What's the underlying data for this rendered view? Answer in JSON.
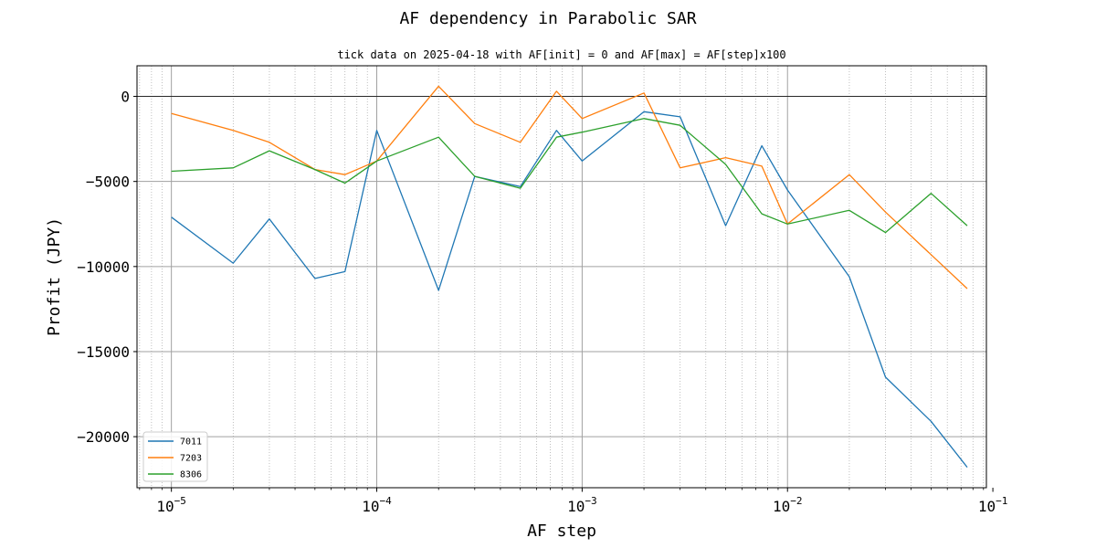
{
  "chart_data": {
    "type": "line",
    "suptitle": "AF dependency in Parabolic SAR",
    "title": "tick data on 2025-04-18 with AF[init] = 0 and AF[max] = AF[step]x100",
    "xlabel": "AF step",
    "ylabel": "Profit (JPY)",
    "xscale": "log",
    "xlim": [
      6.8e-06,
      0.093
    ],
    "ylim": [
      -23000,
      1800
    ],
    "yticks": [
      0,
      -5000,
      -10000,
      -15000,
      -20000
    ],
    "ytick_labels": [
      "0",
      "−5000",
      "−10000",
      "−15000",
      "−20000"
    ],
    "xtick_labels": [
      {
        "base": "10",
        "exp": "−5",
        "value": 1e-05
      },
      {
        "base": "10",
        "exp": "−4",
        "value": 0.0001
      },
      {
        "base": "10",
        "exp": "−3",
        "value": 0.001
      },
      {
        "base": "10",
        "exp": "−2",
        "value": 0.01
      },
      {
        "base": "10",
        "exp": "−1",
        "value": 0.1
      }
    ],
    "grid": true,
    "hline": 0,
    "legend_position": "lower-left",
    "x": [
      1e-05,
      2e-05,
      3e-05,
      5e-05,
      7e-05,
      0.0001,
      0.0002,
      0.0003,
      0.0005,
      0.00075,
      0.001,
      0.002,
      0.003,
      0.005,
      0.0075,
      0.01,
      0.02,
      0.03,
      0.05,
      0.075
    ],
    "series": [
      {
        "name": "7011",
        "color": "#1f77b4",
        "values": [
          -7100,
          -9800,
          -7200,
          -10700,
          -10300,
          -2000,
          -11400,
          -4700,
          -5300,
          -2000,
          -3800,
          -900,
          -1200,
          -7600,
          -2900,
          -5500,
          -10600,
          -16500,
          -19100,
          -21800
        ]
      },
      {
        "name": "7203",
        "color": "#ff7f0e",
        "values": [
          -1000,
          -2000,
          -2700,
          -4300,
          -4600,
          -3800,
          600,
          -1600,
          -2700,
          300,
          -1300,
          200,
          -4200,
          -3600,
          -4100,
          -7500,
          -4600,
          -6800,
          -9300,
          -11300
        ]
      },
      {
        "name": "8306",
        "color": "#2ca02c",
        "values": [
          -4400,
          -4200,
          -3200,
          -4300,
          -5100,
          -3800,
          -2400,
          -4700,
          -5400,
          -2400,
          -2100,
          -1300,
          -1700,
          -4000,
          -6900,
          -7500,
          -6700,
          -8000,
          -5700,
          -7600
        ]
      }
    ]
  }
}
